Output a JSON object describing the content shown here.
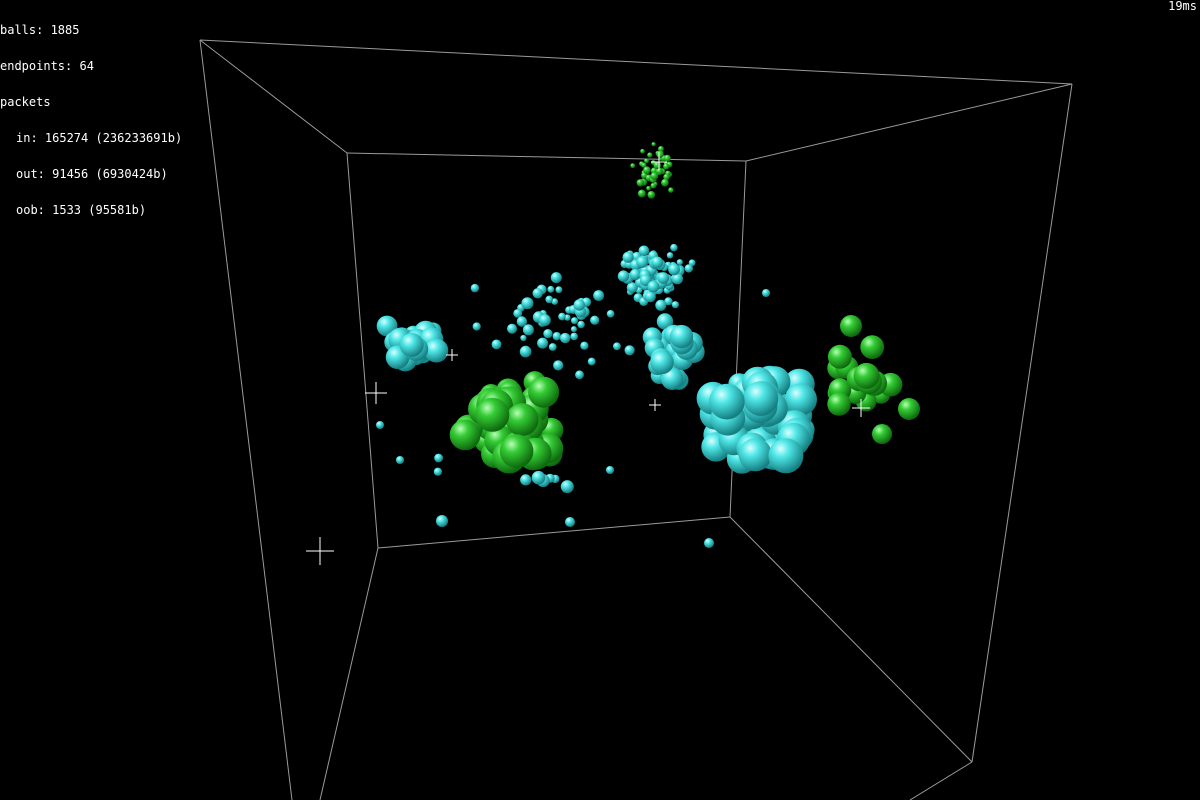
{
  "stats": {
    "balls": "balls: 1885",
    "endpoints": "endpoints: 64",
    "packets_label": "packets",
    "packets_in": "in: 165274 (236233691b)",
    "packets_out": "out: 91456 (6930424b)",
    "packets_oob": "oob: 1533 (95581b)"
  },
  "frame_time": "19ms",
  "colors": {
    "background": "#000000",
    "cube_edges": "#9a9a9a",
    "ball_cyan": "#35dcdc",
    "ball_green": "#2ec22e",
    "endpoint_marker": "#ffffff",
    "hud_text": "#ffffff"
  }
}
